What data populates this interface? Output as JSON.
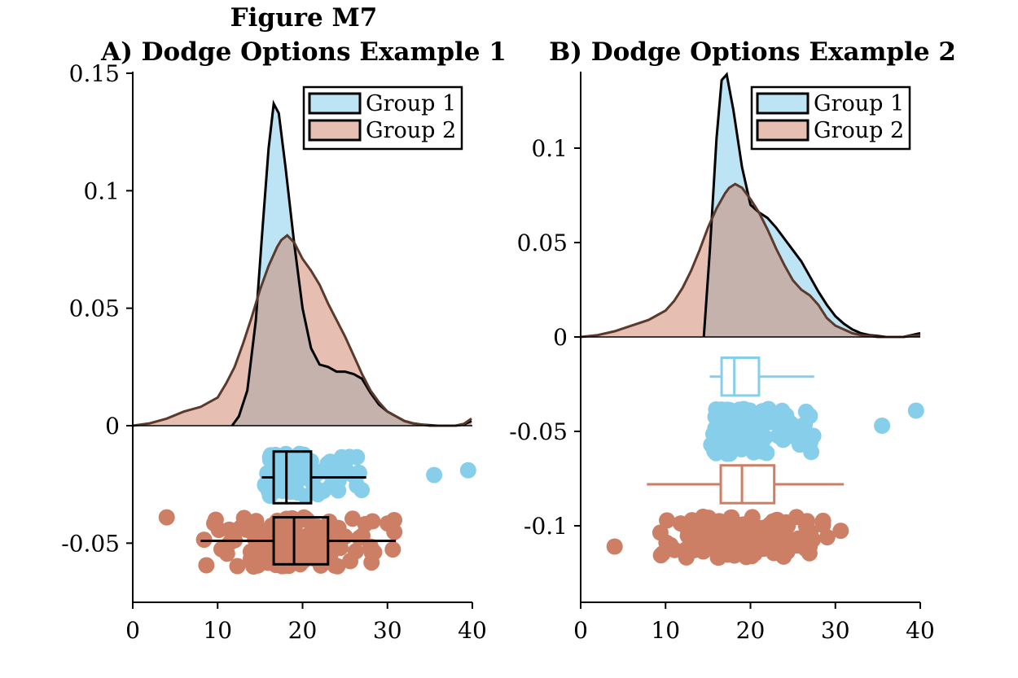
{
  "figure_title": "Figure M7",
  "chart_data": [
    {
      "type": "area",
      "panel": "A",
      "title": "A) Dodge Options Example 1",
      "xlabel": "",
      "ylabel": "",
      "xlim": [
        0,
        40
      ],
      "ylim": [
        -0.075,
        0.15
      ],
      "xticks": [
        "0",
        "10",
        "20",
        "30",
        "40"
      ],
      "yticks": [
        "0.15",
        "0.1",
        "0.05",
        "0",
        "-0.05"
      ],
      "ytick_values": [
        0.15,
        0.1,
        0.05,
        0,
        -0.05
      ],
      "legend": {
        "position": "top-right",
        "entries": [
          "Group 1",
          "Group 2"
        ]
      },
      "series": [
        {
          "name": "Group 1",
          "color": "#87CEEB",
          "density": {
            "x": [
              11.7,
              12.5,
              13.5,
              14.5,
              15.2,
              16.0,
              16.6,
              17.2,
              18.0,
              19.0,
              20.0,
              21.0,
              22.0,
              23.0,
              24.0,
              25.0,
              26.0,
              27.0,
              28.0,
              29.0,
              30.0,
              31.0,
              32.0,
              33.0,
              34.0,
              35.0,
              36.0,
              37.0,
              38.0,
              39.0,
              39.9
            ],
            "y": [
              0.0,
              0.004,
              0.015,
              0.045,
              0.08,
              0.118,
              0.137,
              0.133,
              0.11,
              0.078,
              0.05,
              0.033,
              0.026,
              0.025,
              0.023,
              0.023,
              0.022,
              0.02,
              0.014,
              0.009,
              0.006,
              0.004,
              0.002,
              0.001,
              0.0005,
              0.0002,
              0.0,
              0.0,
              0.0,
              0.0005,
              0.002
            ]
          },
          "box": {
            "min": 15.2,
            "q1": 16.6,
            "median": 18.1,
            "q3": 21.0,
            "max": 27.5,
            "y_center": -0.022,
            "y_half_height": 0.011
          },
          "jitter_y_range": [
            -0.03,
            -0.012
          ],
          "outliers": [
            {
              "x": 35.5,
              "y": -0.021
            },
            {
              "x": 39.5,
              "y": -0.019
            }
          ],
          "n_points": 150
        },
        {
          "name": "Group 2",
          "color": "#CD7F66",
          "density": {
            "x": [
              0.0,
              2.0,
              4.0,
              6.0,
              8.0,
              10.0,
              11.0,
              12.0,
              13.0,
              14.0,
              15.0,
              16.0,
              17.0,
              17.5,
              18.2,
              19.0,
              20.0,
              21.0,
              22.0,
              23.0,
              24.0,
              25.0,
              26.0,
              27.0,
              28.0,
              29.0,
              30.0,
              31.0,
              32.0,
              33.0,
              34.0,
              35.0,
              36.0,
              37.0,
              38.0,
              39.0,
              39.9
            ],
            "y": [
              0.0,
              0.001,
              0.003,
              0.006,
              0.008,
              0.012,
              0.018,
              0.025,
              0.035,
              0.046,
              0.058,
              0.068,
              0.076,
              0.079,
              0.081,
              0.078,
              0.071,
              0.066,
              0.06,
              0.052,
              0.045,
              0.038,
              0.03,
              0.022,
              0.015,
              0.01,
              0.006,
              0.004,
              0.002,
              0.001,
              0.0005,
              0.0,
              0.0,
              0.0,
              0.0,
              0.0008,
              0.003
            ]
          },
          "box": {
            "min": 8.0,
            "q1": 16.6,
            "median": 19.0,
            "q3": 23.0,
            "max": 31.0,
            "y_center": -0.049,
            "y_half_height": 0.01
          },
          "jitter_y_range": [
            -0.06,
            -0.039
          ],
          "outliers": [
            {
              "x": 4.0,
              "y": -0.039
            }
          ],
          "n_points": 150
        }
      ]
    },
    {
      "type": "area",
      "panel": "B",
      "title": "B) Dodge Options Example 2",
      "xlabel": "",
      "ylabel": "",
      "xlim": [
        0,
        40
      ],
      "ylim": [
        -0.14,
        0.14
      ],
      "xticks": [
        "0",
        "10",
        "20",
        "30",
        "40"
      ],
      "yticks": [
        "0.1",
        "0.05",
        "0",
        "-0.05",
        "-0.1"
      ],
      "ytick_values": [
        0.1,
        0.05,
        0,
        -0.05,
        -0.1
      ],
      "legend": {
        "position": "top-right",
        "entries": [
          "Group 1",
          "Group 2"
        ]
      },
      "series": [
        {
          "name": "Group 1",
          "color": "#87CEEB",
          "density": {
            "x": [
              14.5,
              15.2,
              16.0,
              16.6,
              17.2,
              18.0,
              19.0,
              20.0,
              21.0,
              22.0,
              23.0,
              24.0,
              25.0,
              26.0,
              27.0,
              28.0,
              29.0,
              30.0,
              31.0,
              32.0,
              33.0,
              34.0,
              35.0,
              36.0,
              37.0,
              38.0,
              39.0,
              40.0
            ],
            "y": [
              0.0,
              0.045,
              0.105,
              0.136,
              0.139,
              0.12,
              0.09,
              0.07,
              0.066,
              0.063,
              0.058,
              0.052,
              0.046,
              0.04,
              0.032,
              0.024,
              0.017,
              0.011,
              0.007,
              0.004,
              0.002,
              0.001,
              0.0005,
              0.0,
              0.0,
              0.0,
              0.001,
              0.002
            ]
          },
          "box": {
            "min": 15.2,
            "q1": 16.6,
            "median": 18.1,
            "q3": 21.0,
            "max": 27.5,
            "y_center": -0.021,
            "y_half_height": 0.01
          },
          "jitter_y_range": [
            -0.062,
            -0.038
          ],
          "outliers": [
            {
              "x": 35.5,
              "y": -0.047
            },
            {
              "x": 39.5,
              "y": -0.039
            }
          ],
          "n_points": 150
        },
        {
          "name": "Group 2",
          "color": "#CD7F66",
          "density": {
            "x": [
              0.0,
              2.0,
              4.0,
              6.0,
              8.0,
              10.0,
              11.0,
              11.8,
              12.5,
              13.5,
              14.5,
              15.5,
              16.5,
              17.5,
              18.5,
              19.5,
              20.5,
              21.5,
              22.5,
              23.5,
              24.5,
              25.5,
              26.5,
              27.5,
              28.5,
              29.5,
              30.5,
              31.5,
              33.0,
              35.0,
              37.0,
              39.0,
              40.0
            ],
            "y": [
              0.0,
              0.001,
              0.002,
              0.005,
              0.008,
              0.012,
              0.014,
              0.0,
              0.0,
              0.0,
              0.0,
              0.0,
              0.0,
              0.0,
              0.0,
              0.0,
              0.0,
              0.0,
              0.0,
              0.0,
              0.0,
              0.0,
              0.0,
              0.0,
              0.0,
              0.0,
              0.0,
              0.0,
              0.0,
              0.0,
              0.0,
              0.0,
              0.0
            ]
          },
          "density_full": {
            "x": [
              0.0,
              2.0,
              4.0,
              6.0,
              8.0,
              10.0,
              11.0,
              12.0,
              13.0,
              14.0,
              15.0,
              16.0,
              17.0,
              17.5,
              18.2,
              19.0,
              20.0,
              21.0,
              22.0,
              23.0,
              24.0,
              25.0,
              26.0,
              27.0,
              28.0,
              29.0,
              30.0,
              31.0,
              32.0,
              33.0,
              34.0,
              35.0,
              36.0,
              37.0,
              38.0,
              39.0,
              40.0
            ],
            "y": [
              0.0,
              0.001,
              0.003,
              0.006,
              0.009,
              0.014,
              0.019,
              0.026,
              0.035,
              0.046,
              0.058,
              0.068,
              0.076,
              0.079,
              0.081,
              0.079,
              0.073,
              0.066,
              0.057,
              0.047,
              0.038,
              0.03,
              0.025,
              0.022,
              0.017,
              0.01,
              0.006,
              0.004,
              0.002,
              0.001,
              0.0005,
              0.0,
              0.0,
              0.0,
              0.0,
              0.0005,
              0.001
            ]
          },
          "box": {
            "min": 7.8,
            "q1": 16.5,
            "median": 19.0,
            "q3": 22.8,
            "max": 31.0,
            "y_center": -0.078,
            "y_half_height": 0.01
          },
          "jitter_y_range": [
            -0.117,
            -0.095
          ],
          "outliers": [
            {
              "x": 4.0,
              "y": -0.111
            }
          ],
          "n_points": 150
        }
      ]
    }
  ]
}
